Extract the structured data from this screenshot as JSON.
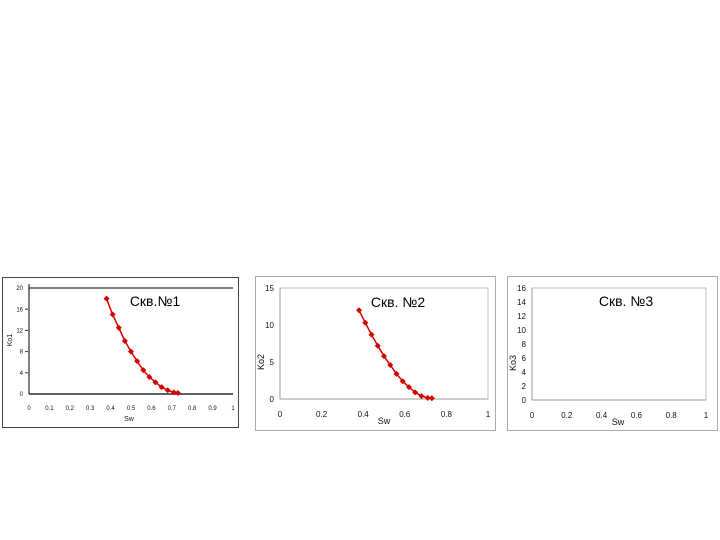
{
  "chart_data": [
    {
      "type": "line",
      "title": "Скв.№1",
      "xlabel": "Sw",
      "ylabel": "Ko1",
      "xlim": [
        0,
        1
      ],
      "ylim": [
        0,
        20
      ],
      "xticks": [
        "0",
        "0.1",
        "0.2",
        "0.3",
        "0.4",
        "0.5",
        "0.6",
        "0.7",
        "0.8",
        "0.9",
        "1"
      ],
      "yticks": [
        "0",
        "4",
        "8",
        "12",
        "16",
        "20"
      ],
      "series": [
        {
          "color": "#d40000",
          "x": [
            0.38,
            0.41,
            0.44,
            0.47,
            0.5,
            0.53,
            0.56,
            0.59,
            0.62,
            0.65,
            0.68,
            0.71,
            0.73
          ],
          "y": [
            18.0,
            15.0,
            12.5,
            10.0,
            8.0,
            6.2,
            4.5,
            3.2,
            2.2,
            1.3,
            0.7,
            0.3,
            0.2
          ]
        }
      ]
    },
    {
      "type": "line",
      "title": "Скв. №2",
      "xlabel": "Sw",
      "ylabel": "Ko2",
      "xlim": [
        0,
        1
      ],
      "ylim": [
        0,
        15
      ],
      "xticks": [
        "0",
        "0.2",
        "0.4",
        "0.6",
        "0.8",
        "1"
      ],
      "yticks": [
        "0",
        "5",
        "10",
        "15"
      ],
      "series": [
        {
          "color": "#d40000",
          "x": [
            0.38,
            0.41,
            0.44,
            0.47,
            0.5,
            0.53,
            0.56,
            0.59,
            0.62,
            0.65,
            0.68,
            0.71,
            0.73
          ],
          "y": [
            12.0,
            10.3,
            8.7,
            7.2,
            5.8,
            4.6,
            3.4,
            2.4,
            1.6,
            0.9,
            0.4,
            0.15,
            0.1
          ]
        }
      ]
    },
    {
      "type": "line",
      "title": "Скв. №3",
      "xlabel": "Sw",
      "ylabel": "Ko3",
      "xlim": [
        0,
        1
      ],
      "ylim": [
        0,
        16
      ],
      "xticks": [
        "0",
        "0.2",
        "0.4",
        "0.6",
        "0.8",
        "1"
      ],
      "yticks": [
        "0",
        "2",
        "4",
        "6",
        "8",
        "10",
        "12",
        "14",
        "16"
      ],
      "series": []
    }
  ]
}
